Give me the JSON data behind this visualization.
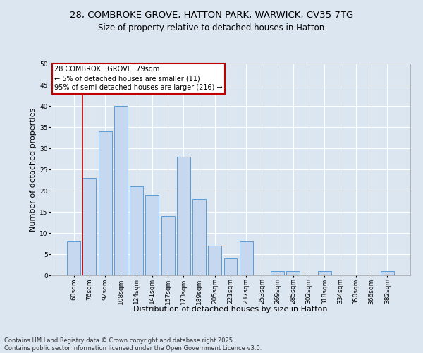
{
  "title_line1": "28, COMBROKE GROVE, HATTON PARK, WARWICK, CV35 7TG",
  "title_line2": "Size of property relative to detached houses in Hatton",
  "xlabel": "Distribution of detached houses by size in Hatton",
  "ylabel": "Number of detached properties",
  "categories": [
    "60sqm",
    "76sqm",
    "92sqm",
    "108sqm",
    "124sqm",
    "141sqm",
    "157sqm",
    "173sqm",
    "189sqm",
    "205sqm",
    "221sqm",
    "237sqm",
    "253sqm",
    "269sqm",
    "285sqm",
    "302sqm",
    "318sqm",
    "334sqm",
    "350sqm",
    "366sqm",
    "382sqm"
  ],
  "values": [
    8,
    23,
    34,
    40,
    21,
    19,
    14,
    28,
    18,
    7,
    4,
    8,
    0,
    1,
    1,
    0,
    1,
    0,
    0,
    0,
    1
  ],
  "bar_color": "#c5d8f0",
  "bar_edge_color": "#5b9bd5",
  "annotation_title": "28 COMBROKE GROVE: 79sqm",
  "annotation_line2": "← 5% of detached houses are smaller (11)",
  "annotation_line3": "95% of semi-detached houses are larger (216) →",
  "annotation_box_color": "#ffffff",
  "annotation_box_edge_color": "#c00000",
  "vline_index": 1,
  "vline_color": "#c00000",
  "ylim": [
    0,
    50
  ],
  "yticks": [
    0,
    5,
    10,
    15,
    20,
    25,
    30,
    35,
    40,
    45,
    50
  ],
  "background_color": "#dce6f1",
  "footer": "Contains HM Land Registry data © Crown copyright and database right 2025.\nContains public sector information licensed under the Open Government Licence v3.0.",
  "title_fontsize": 9.5,
  "subtitle_fontsize": 8.5,
  "tick_fontsize": 6.5,
  "ylabel_fontsize": 8,
  "xlabel_fontsize": 8,
  "annotation_fontsize": 7,
  "footer_fontsize": 6
}
